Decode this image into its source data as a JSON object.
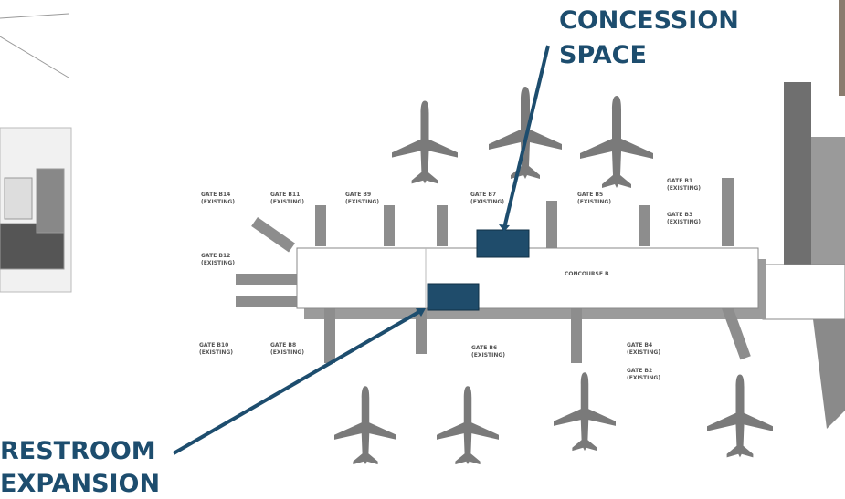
{
  "callouts": {
    "concession": [
      "CONCESSION",
      "SPACE"
    ],
    "restroom": [
      "RESTROOM",
      "EXPANSION"
    ]
  },
  "concourse_label": "CONCOURSE B",
  "gates": [
    {
      "name": "GATE B14",
      "status": "(EXISTING)"
    },
    {
      "name": "GATE B11",
      "status": "(EXISTING)"
    },
    {
      "name": "GATE B9",
      "status": "(EXISTING)"
    },
    {
      "name": "GATE B7",
      "status": "(EXISTING)"
    },
    {
      "name": "GATE B5",
      "status": "(EXISTING)"
    },
    {
      "name": "GATE B1",
      "status": "(EXISTING)"
    },
    {
      "name": "GATE B3",
      "status": "(EXISTING)"
    },
    {
      "name": "GATE B12",
      "status": "(EXISTING)"
    },
    {
      "name": "GATE B10",
      "status": "(EXISTING)"
    },
    {
      "name": "GATE B8",
      "status": "(EXISTING)"
    },
    {
      "name": "GATE B6",
      "status": "(EXISTING)"
    },
    {
      "name": "GATE B4",
      "status": "(EXISTING)"
    },
    {
      "name": "GATE B2",
      "status": "(EXISTING)"
    }
  ]
}
